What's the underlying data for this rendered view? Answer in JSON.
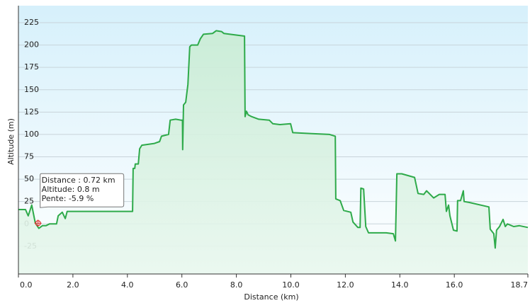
{
  "chart_data": {
    "type": "line",
    "xlabel": "Distance  (km)",
    "ylabel": "Altitude (m)",
    "x": [
      0,
      0.26,
      0.36,
      0.49,
      0.62,
      0.75,
      0.88,
      1.01,
      1.14,
      1.4,
      1.46,
      1.61,
      1.72,
      1.79,
      1.92,
      2.96,
      4.19,
      4.21,
      4.27,
      4.29,
      4.4,
      4.45,
      4.53,
      4.99,
      5.18,
      5.25,
      5.51,
      5.57,
      5.77,
      5.96,
      6.02,
      6.03,
      6.06,
      6.14,
      6.22,
      6.29,
      6.35,
      6.58,
      6.68,
      6.79,
      7.13,
      7.26,
      7.46,
      7.54,
      8.3,
      8.32,
      8.37,
      8.43,
      8.56,
      8.82,
      9.21,
      9.34,
      9.6,
      9.99,
      10.07,
      10.77,
      11.42,
      11.63,
      11.65,
      11.81,
      11.94,
      12.2,
      12.28,
      12.46,
      12.54,
      12.57,
      12.67,
      12.75,
      12.85,
      13.5,
      13.76,
      13.84,
      13.89,
      14.07,
      14.54,
      14.67,
      14.88,
      14.98,
      15.24,
      15.45,
      15.66,
      15.71,
      15.79,
      15.84,
      15.97,
      16.1,
      16.12,
      16.23,
      16.33,
      16.36,
      16.54,
      17.27,
      17.32,
      17.45,
      17.5,
      17.55,
      17.66,
      17.79,
      17.87,
      17.95,
      18.18,
      18.39,
      18.7
    ],
    "series": [
      {
        "name": "Altitude",
        "color": "#2eaa4a",
        "values": [
          16,
          16,
          9,
          21,
          1,
          -5,
          -2,
          -2,
          0,
          0,
          9,
          13,
          6,
          14,
          14,
          14,
          14,
          62,
          62,
          67,
          67,
          84,
          88,
          90,
          92,
          98,
          100,
          116,
          117,
          116,
          116,
          83,
          133,
          136,
          156,
          198,
          200,
          200,
          207,
          212,
          213,
          216,
          215,
          213,
          210,
          120,
          126,
          122,
          120,
          117,
          116,
          112,
          111,
          112,
          102,
          101,
          100,
          98,
          28,
          26,
          15,
          13,
          2,
          -4,
          -4,
          40,
          39,
          -3,
          -10,
          -10,
          -11,
          -19,
          56,
          56,
          52,
          34,
          33,
          37,
          29,
          33,
          33,
          14,
          21,
          9,
          -7,
          -8,
          26,
          26,
          37,
          25,
          24,
          19,
          -6,
          -11,
          -27,
          -7,
          -3,
          5,
          -3,
          0,
          -3,
          -2,
          -4
        ]
      }
    ],
    "xlim": [
      0,
      18.7
    ],
    "ylim": [
      -56,
      244
    ],
    "xticks": [
      {
        "value": 0,
        "label": "0.0"
      },
      {
        "value": 2,
        "label": "2.0"
      },
      {
        "value": 4,
        "label": "4.0"
      },
      {
        "value": 6,
        "label": "6.0"
      },
      {
        "value": 8,
        "label": "8.0"
      },
      {
        "value": 10,
        "label": "10.0"
      },
      {
        "value": 12,
        "label": "12.0"
      },
      {
        "value": 14,
        "label": "14.0"
      },
      {
        "value": 16,
        "label": "16.0"
      },
      18.7
    ],
    "yticks": [
      -25,
      0,
      25,
      50,
      75,
      100,
      125,
      150,
      175,
      200,
      225
    ],
    "grid": true,
    "tooltip": {
      "x": 0.72,
      "y": 0.8,
      "lines": [
        "Distance : 0.72 km",
        "Altitude: 0.8 m",
        "Pente: -5.9 %"
      ]
    }
  }
}
